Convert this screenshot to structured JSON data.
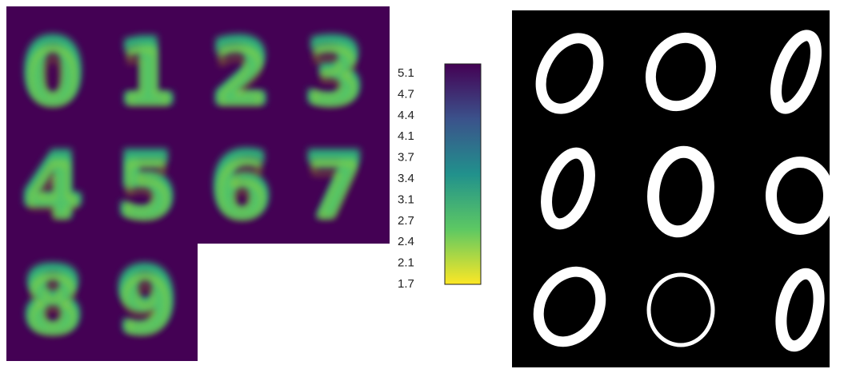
{
  "heatmap_panel": {
    "digits": [
      "0",
      "1",
      "2",
      "3",
      "4",
      "5",
      "6",
      "7",
      "8",
      "9"
    ],
    "colormap": "viridis",
    "background_color": "#440154",
    "ink_colors": [
      "#29AF7F",
      "#55C667",
      "#95D840",
      "#DCE319"
    ]
  },
  "colorbar": {
    "tick_labels": [
      "5.1",
      "4.7",
      "4.4",
      "4.1",
      "3.7",
      "3.4",
      "3.1",
      "2.7",
      "2.4",
      "2.1",
      "1.7"
    ],
    "stops": [
      "#440154",
      "#3B528B",
      "#21918C",
      "#5DC863",
      "#FDE725"
    ]
  },
  "samples_panel": {
    "digit": "0",
    "count": 9,
    "background_color": "#000000",
    "stroke_color": "#ffffff"
  }
}
